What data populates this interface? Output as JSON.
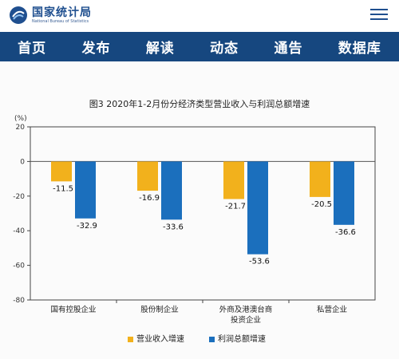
{
  "header": {
    "logo_cn": "国家统计局",
    "logo_en": "National Bureau of Statistics",
    "logo_icon": "nbs-emblem-icon",
    "menu_icon": "hamburger-menu-icon"
  },
  "nav": {
    "items": [
      "首页",
      "发布",
      "解读",
      "动态",
      "通告",
      "数据库"
    ]
  },
  "colors": {
    "nav_bg": "#16477f",
    "revenue": "#f2b11c",
    "profit": "#1b6fbd"
  },
  "chart_data": {
    "type": "bar",
    "title": "图3 2020年1-2月份分经济类型营业收入与利润总额增速",
    "ylabel": "(%)",
    "ylim": [
      -80,
      20
    ],
    "yticks": [
      20,
      0,
      -20,
      -40,
      -60,
      -80
    ],
    "categories": [
      [
        "国有控股企业"
      ],
      [
        "股份制企业"
      ],
      [
        "外商及港澳台商",
        "投资企业"
      ],
      [
        "私营企业"
      ]
    ],
    "series": [
      {
        "name": "营业收入增速",
        "values": [
          -11.5,
          -16.9,
          -21.7,
          -20.5
        ]
      },
      {
        "name": "利润总额增速",
        "values": [
          -32.9,
          -33.6,
          -53.6,
          -36.6
        ]
      }
    ],
    "grid": false,
    "legend_position": "bottom"
  }
}
